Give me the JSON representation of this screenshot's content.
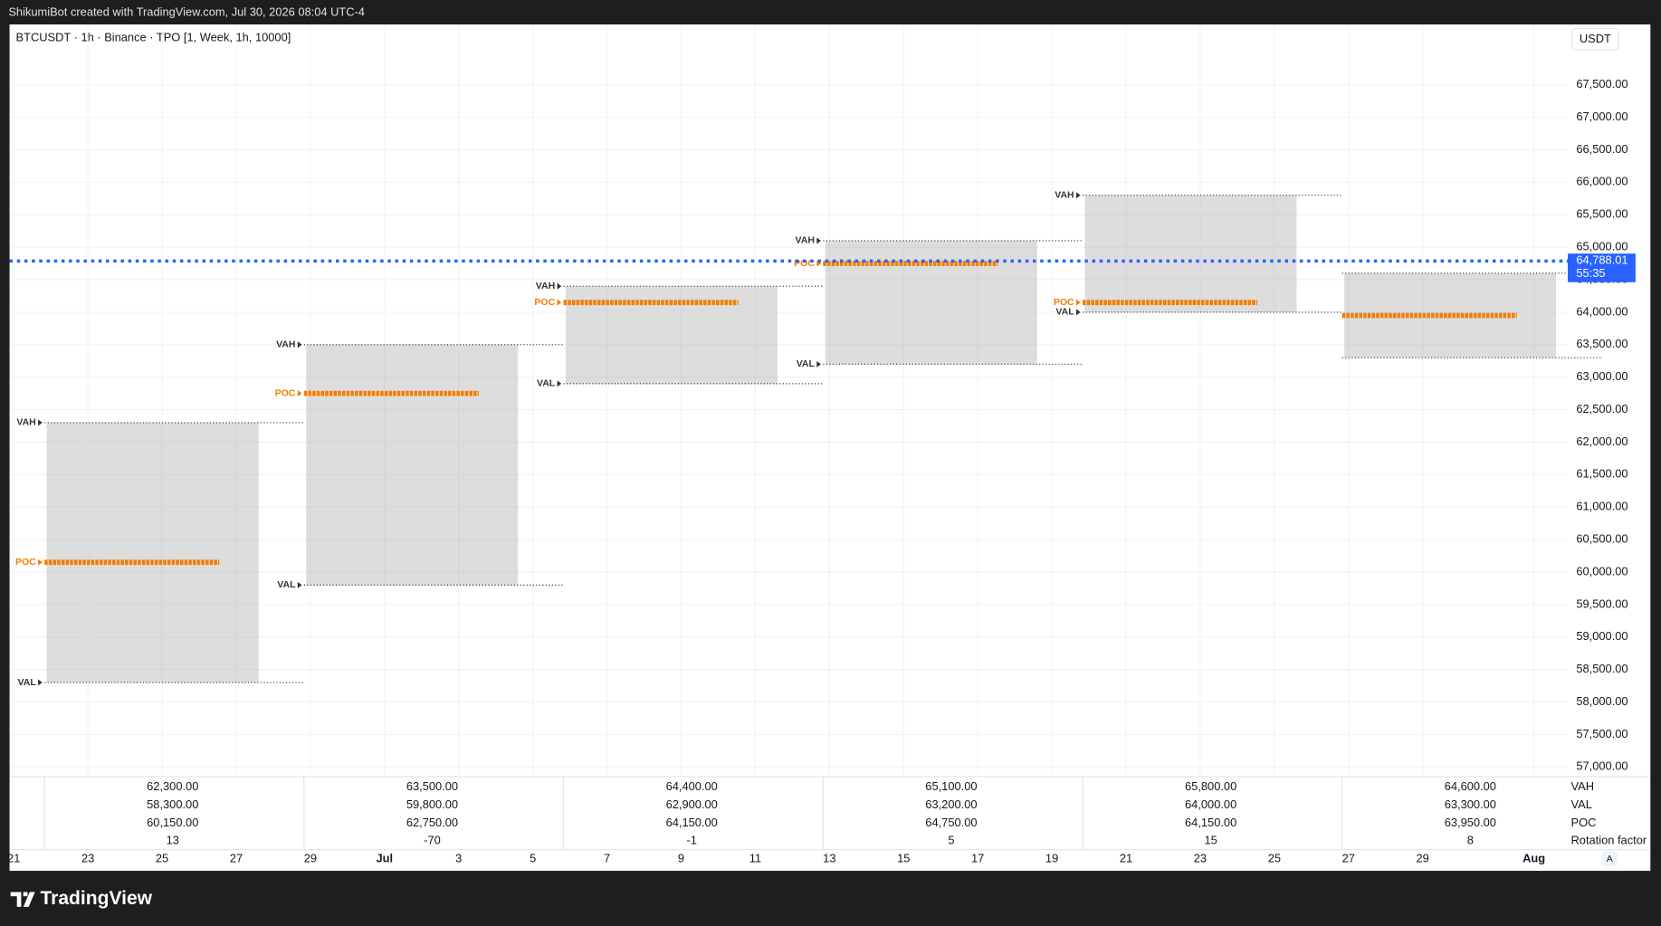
{
  "header": "ShikumiBot created with TradingView.com, Jul 30, 2026 08:04 UTC-4",
  "footer": {
    "brand": "TradingView"
  },
  "chart_data": {
    "type": "tpo",
    "title": "BTCUSDT · 1h · Binance · TPO [1, Week, 1h, 10000]",
    "currency": "USDT",
    "categories": [
      "21",
      "23",
      "25",
      "27",
      "29",
      "Jul",
      "3",
      "5",
      "7",
      "9",
      "11",
      "13",
      "15",
      "17",
      "19",
      "21",
      "23",
      "25",
      "27",
      "29",
      "Aug"
    ],
    "ylim": [
      56853,
      68429
    ],
    "yticks": [
      {
        "value": 57000,
        "label": "57,000.00"
      },
      {
        "value": 57500,
        "label": "57,500.00"
      },
      {
        "value": 58000,
        "label": "58,000.00"
      },
      {
        "value": 58500,
        "label": "58,500.00"
      },
      {
        "value": 59000,
        "label": "59,000.00"
      },
      {
        "value": 59500,
        "label": "59,500.00"
      },
      {
        "value": 60000,
        "label": "60,000.00"
      },
      {
        "value": 60500,
        "label": "60,500.00"
      },
      {
        "value": 61000,
        "label": "61,000.00"
      },
      {
        "value": 61500,
        "label": "61,500.00"
      },
      {
        "value": 62000,
        "label": "62,000.00"
      },
      {
        "value": 62500,
        "label": "62,500.00"
      },
      {
        "value": 63000,
        "label": "63,000.00"
      },
      {
        "value": 63500,
        "label": "63,500.00"
      },
      {
        "value": 64000,
        "label": "64,000.00"
      },
      {
        "value": 64500,
        "label": "64,500.00"
      },
      {
        "value": 65000,
        "label": "65,000.00"
      },
      {
        "value": 65500,
        "label": "65,500.00"
      },
      {
        "value": 66000,
        "label": "66,000.00"
      },
      {
        "value": 66500,
        "label": "66,500.00"
      },
      {
        "value": 67000,
        "label": "67,000.00"
      },
      {
        "value": 67500,
        "label": "67,500.00"
      }
    ],
    "grid": true,
    "last_price": {
      "value": 64788.01,
      "label": "64,788.01"
    },
    "countdown": "55:35",
    "row_labels": {
      "vah": "VAH",
      "val": "VAL",
      "poc": "POC",
      "rotation_factor": "Rotation factor"
    },
    "profiles": [
      {
        "vah": {
          "value": 62300,
          "label": "62,300.00"
        },
        "val": {
          "value": 58300,
          "label": "58,300.00"
        },
        "poc": {
          "value": 60150,
          "label": "60,150.00"
        },
        "rotation_factor": 13
      },
      {
        "vah": {
          "value": 63500,
          "label": "63,500.00"
        },
        "val": {
          "value": 59800,
          "label": "59,800.00"
        },
        "poc": {
          "value": 62750,
          "label": "62,750.00"
        },
        "rotation_factor": -70
      },
      {
        "vah": {
          "value": 64400,
          "label": "64,400.00"
        },
        "val": {
          "value": 62900,
          "label": "62,900.00"
        },
        "poc": {
          "value": 64150,
          "label": "64,150.00"
        },
        "rotation_factor": -1
      },
      {
        "vah": {
          "value": 65100,
          "label": "65,100.00"
        },
        "val": {
          "value": 63200,
          "label": "63,200.00"
        },
        "poc": {
          "value": 64750,
          "label": "64,750.00"
        },
        "rotation_factor": 5
      },
      {
        "vah": {
          "value": 65800,
          "label": "65,800.00"
        },
        "val": {
          "value": 64000,
          "label": "64,000.00"
        },
        "poc": {
          "value": 64150,
          "label": "64,150.00"
        },
        "rotation_factor": 15
      },
      {
        "vah": {
          "value": 64600,
          "label": "64,600.00"
        },
        "val": {
          "value": 63300,
          "label": "63,300.00"
        },
        "poc": {
          "value": 63950,
          "label": "63,950.00"
        },
        "rotation_factor": 8
      }
    ],
    "colors": {
      "poc": "#f57c00",
      "last_price": "#2962ff",
      "value_area": "#9e9e9e"
    },
    "scale_mode_button": "A"
  }
}
